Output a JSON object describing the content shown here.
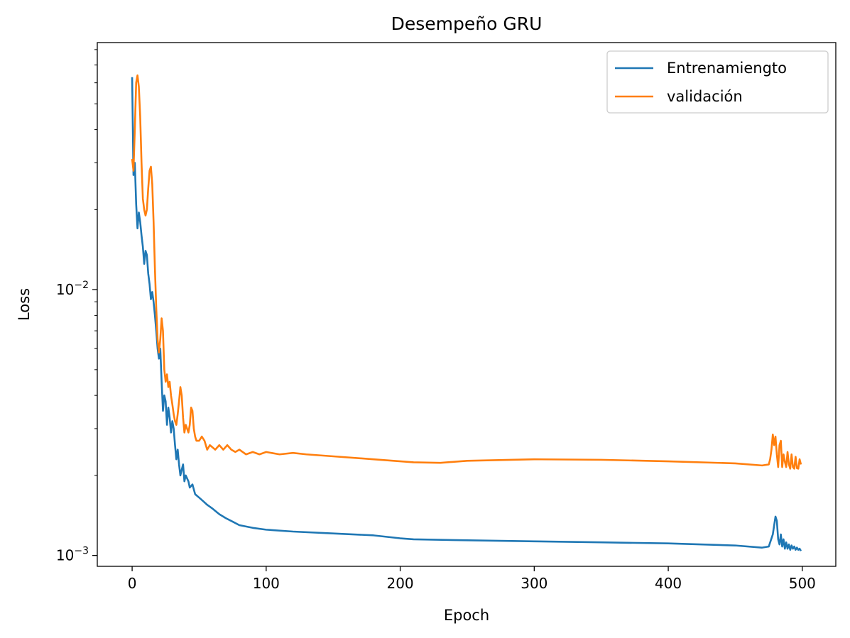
{
  "chart_data": {
    "type": "line",
    "title": "Desempeño GRU",
    "xlabel": "Epoch",
    "ylabel": "Loss",
    "xlim": [
      -26,
      525
    ],
    "ylim": [
      0.00091,
      0.085
    ],
    "yscale": "log",
    "grid": false,
    "legend_position": "top-right",
    "x_ticks": [
      {
        "value": 0,
        "label": "0"
      },
      {
        "value": 100,
        "label": "100"
      },
      {
        "value": 200,
        "label": "200"
      },
      {
        "value": 300,
        "label": "300"
      },
      {
        "value": 400,
        "label": "400"
      },
      {
        "value": 500,
        "label": "500"
      }
    ],
    "y_ticks": [
      {
        "value": 0.001,
        "base": "10",
        "exp": "−3"
      },
      {
        "value": 0.01,
        "base": "10",
        "exp": "−2"
      }
    ],
    "series": [
      {
        "name": "Entrenamiengto",
        "color": "#1f77b4",
        "points": [
          [
            0,
            0.063
          ],
          [
            1,
            0.027
          ],
          [
            2,
            0.03
          ],
          [
            3,
            0.021
          ],
          [
            4,
            0.017
          ],
          [
            5,
            0.0195
          ],
          [
            6,
            0.018
          ],
          [
            7,
            0.016
          ],
          [
            8,
            0.0145
          ],
          [
            9,
            0.0125
          ],
          [
            10,
            0.014
          ],
          [
            11,
            0.0135
          ],
          [
            12,
            0.0115
          ],
          [
            13,
            0.0105
          ],
          [
            14,
            0.0092
          ],
          [
            15,
            0.0098
          ],
          [
            16,
            0.009
          ],
          [
            17,
            0.008
          ],
          [
            18,
            0.007
          ],
          [
            19,
            0.006
          ],
          [
            20,
            0.0055
          ],
          [
            21,
            0.006
          ],
          [
            22,
            0.0045
          ],
          [
            23,
            0.0035
          ],
          [
            24,
            0.004
          ],
          [
            25,
            0.0038
          ],
          [
            26,
            0.0031
          ],
          [
            27,
            0.0036
          ],
          [
            28,
            0.0033
          ],
          [
            29,
            0.0029
          ],
          [
            30,
            0.0032
          ],
          [
            31,
            0.003
          ],
          [
            32,
            0.0026
          ],
          [
            33,
            0.0023
          ],
          [
            34,
            0.0025
          ],
          [
            35,
            0.0022
          ],
          [
            36,
            0.002
          ],
          [
            37,
            0.0021
          ],
          [
            38,
            0.0022
          ],
          [
            39,
            0.0019
          ],
          [
            40,
            0.002
          ],
          [
            42,
            0.0019
          ],
          [
            43,
            0.0018
          ],
          [
            45,
            0.00185
          ],
          [
            47,
            0.0017
          ],
          [
            50,
            0.00165
          ],
          [
            53,
            0.0016
          ],
          [
            56,
            0.00155
          ],
          [
            60,
            0.0015
          ],
          [
            65,
            0.00143
          ],
          [
            70,
            0.00138
          ],
          [
            75,
            0.00134
          ],
          [
            80,
            0.0013
          ],
          [
            90,
            0.00127
          ],
          [
            100,
            0.00125
          ],
          [
            120,
            0.00123
          ],
          [
            150,
            0.00121
          ],
          [
            180,
            0.00119
          ],
          [
            200,
            0.00116
          ],
          [
            210,
            0.00115
          ],
          [
            250,
            0.00114
          ],
          [
            300,
            0.00113
          ],
          [
            350,
            0.00112
          ],
          [
            400,
            0.00111
          ],
          [
            450,
            0.00109
          ],
          [
            470,
            0.00107
          ],
          [
            475,
            0.00108
          ],
          [
            478,
            0.0012
          ],
          [
            480,
            0.0014
          ],
          [
            481,
            0.00135
          ],
          [
            482,
            0.00115
          ],
          [
            483,
            0.0011
          ],
          [
            484,
            0.0012
          ],
          [
            485,
            0.00108
          ],
          [
            486,
            0.00115
          ],
          [
            487,
            0.00106
          ],
          [
            488,
            0.00112
          ],
          [
            489,
            0.00106
          ],
          [
            490,
            0.0011
          ],
          [
            491,
            0.00105
          ],
          [
            492,
            0.00109
          ],
          [
            493,
            0.00106
          ],
          [
            494,
            0.00108
          ],
          [
            495,
            0.00105
          ],
          [
            496,
            0.00107
          ],
          [
            497,
            0.00105
          ],
          [
            498,
            0.00106
          ],
          [
            499,
            0.00104
          ]
        ]
      },
      {
        "name": "validación",
        "color": "#ff7f0e",
        "points": [
          [
            0,
            0.031
          ],
          [
            1,
            0.028
          ],
          [
            2,
            0.04
          ],
          [
            3,
            0.06
          ],
          [
            4,
            0.064
          ],
          [
            5,
            0.058
          ],
          [
            6,
            0.045
          ],
          [
            7,
            0.03
          ],
          [
            8,
            0.022
          ],
          [
            9,
            0.02
          ],
          [
            10,
            0.019
          ],
          [
            11,
            0.02
          ],
          [
            12,
            0.024
          ],
          [
            13,
            0.028
          ],
          [
            14,
            0.029
          ],
          [
            15,
            0.025
          ],
          [
            16,
            0.018
          ],
          [
            17,
            0.012
          ],
          [
            18,
            0.0085
          ],
          [
            19,
            0.0065
          ],
          [
            20,
            0.0058
          ],
          [
            21,
            0.0065
          ],
          [
            22,
            0.0078
          ],
          [
            23,
            0.007
          ],
          [
            24,
            0.005
          ],
          [
            25,
            0.0045
          ],
          [
            26,
            0.0048
          ],
          [
            27,
            0.0043
          ],
          [
            28,
            0.0045
          ],
          [
            29,
            0.004
          ],
          [
            30,
            0.0037
          ],
          [
            31,
            0.0034
          ],
          [
            32,
            0.0032
          ],
          [
            33,
            0.0031
          ],
          [
            34,
            0.0034
          ],
          [
            35,
            0.0038
          ],
          [
            36,
            0.0043
          ],
          [
            37,
            0.004
          ],
          [
            38,
            0.0033
          ],
          [
            39,
            0.0029
          ],
          [
            40,
            0.0031
          ],
          [
            41,
            0.003
          ],
          [
            42,
            0.0029
          ],
          [
            43,
            0.0031
          ],
          [
            44,
            0.0036
          ],
          [
            45,
            0.0035
          ],
          [
            46,
            0.003
          ],
          [
            47,
            0.0028
          ],
          [
            48,
            0.0027
          ],
          [
            50,
            0.0027
          ],
          [
            52,
            0.0028
          ],
          [
            54,
            0.0027
          ],
          [
            56,
            0.0025
          ],
          [
            58,
            0.0026
          ],
          [
            60,
            0.00255
          ],
          [
            62,
            0.0025
          ],
          [
            65,
            0.0026
          ],
          [
            68,
            0.0025
          ],
          [
            71,
            0.0026
          ],
          [
            74,
            0.0025
          ],
          [
            77,
            0.00245
          ],
          [
            80,
            0.0025
          ],
          [
            85,
            0.0024
          ],
          [
            90,
            0.00245
          ],
          [
            95,
            0.0024
          ],
          [
            100,
            0.00245
          ],
          [
            110,
            0.0024
          ],
          [
            120,
            0.00243
          ],
          [
            130,
            0.0024
          ],
          [
            150,
            0.00236
          ],
          [
            180,
            0.0023
          ],
          [
            210,
            0.00224
          ],
          [
            230,
            0.00223
          ],
          [
            250,
            0.00227
          ],
          [
            300,
            0.0023
          ],
          [
            350,
            0.00229
          ],
          [
            400,
            0.00226
          ],
          [
            450,
            0.00222
          ],
          [
            470,
            0.00218
          ],
          [
            475,
            0.0022
          ],
          [
            476,
            0.0023
          ],
          [
            477,
            0.0025
          ],
          [
            478,
            0.00285
          ],
          [
            479,
            0.0026
          ],
          [
            480,
            0.0028
          ],
          [
            481,
            0.0024
          ],
          [
            482,
            0.00215
          ],
          [
            483,
            0.0026
          ],
          [
            484,
            0.0027
          ],
          [
            485,
            0.00215
          ],
          [
            486,
            0.0024
          ],
          [
            487,
            0.00225
          ],
          [
            488,
            0.00215
          ],
          [
            489,
            0.00245
          ],
          [
            490,
            0.0022
          ],
          [
            491,
            0.00212
          ],
          [
            492,
            0.0024
          ],
          [
            493,
            0.00215
          ],
          [
            494,
            0.00212
          ],
          [
            495,
            0.00235
          ],
          [
            496,
            0.00213
          ],
          [
            497,
            0.00212
          ],
          [
            498,
            0.0023
          ],
          [
            499,
            0.0022
          ]
        ]
      }
    ]
  }
}
